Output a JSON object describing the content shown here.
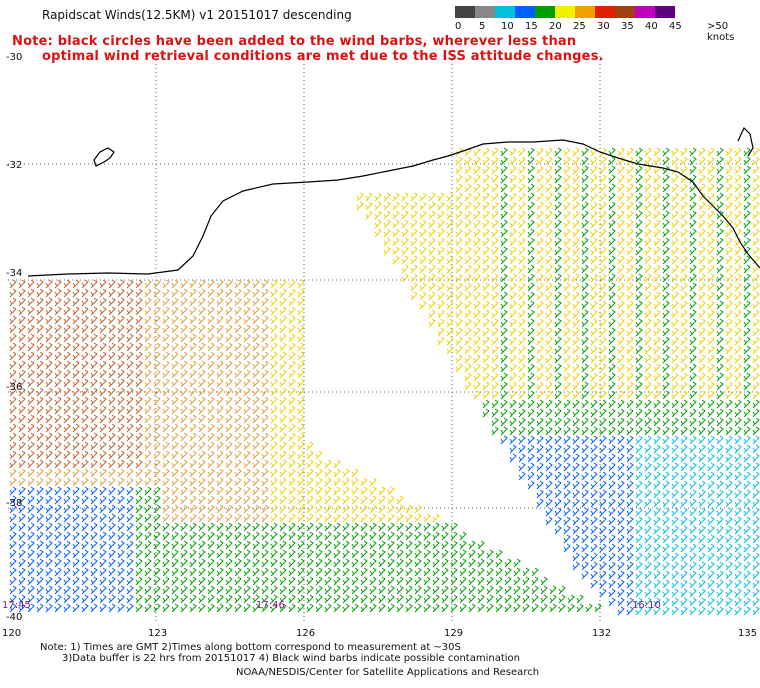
{
  "title": "Rapidscat Winds(12.5KM) v1 20151017 descending",
  "note_line1": "Note: black circles have been added to the wind barbs, wherever less than",
  "note_line2": "optimal wind retrieval conditions are met due to the ISS attitude changes.",
  "legend": {
    "labels": [
      "0",
      "5",
      "10",
      "15",
      "20",
      "25",
      "30",
      "35",
      "40",
      "45",
      ">50 knots"
    ],
    "colors": [
      "#444444",
      "#888888",
      "#00c0e0",
      "#0060ff",
      "#00a000",
      "#f0f000",
      "#f0a000",
      "#e02000",
      "#a04010",
      "#c000c0",
      "#600080"
    ]
  },
  "lat_labels": [
    "-30",
    "-32",
    "-34",
    "-36",
    "-38",
    "-40"
  ],
  "lon_labels": [
    "120",
    "123",
    "126",
    "129",
    "132",
    "135"
  ],
  "time_labels": [
    "17:45",
    "17:46",
    "16:10"
  ],
  "footer": {
    "line1": "Note: 1) Times are GMT 2)Times along bottom correspond to measurement at ~30S",
    "line2": "3)Data buffer is 22 hrs from 20151017 4) Black wind barbs indicate possible contamination",
    "line3": "NOAA/NESDIS/Center for Satellite Applications and Research"
  }
}
